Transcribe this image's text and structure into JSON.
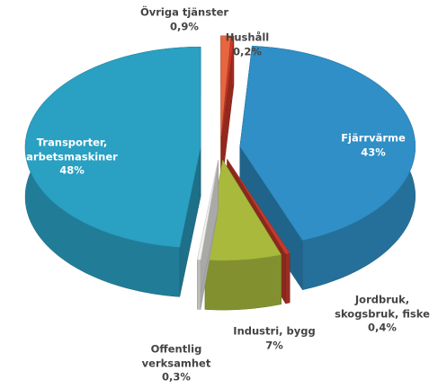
{
  "chart_data": {
    "type": "pie",
    "categories": [
      "Övriga tjänster",
      "Hushåll",
      "Fjärrvärme",
      "Jordbruk, skogsbruk, fiske",
      "Industri, bygg",
      "Offentlig verksamhet",
      "Transporter, arbetsmaskiner"
    ],
    "values": [
      0.9,
      0.2,
      43,
      0.4,
      7,
      0.3,
      48
    ],
    "value_labels": [
      "0,9%",
      "0,2%",
      "43%",
      "0,4%",
      "7%",
      "0,3%",
      "48%"
    ],
    "colors": [
      "#e8653f",
      "#d23a2a",
      "#2f8fc6",
      "#c43a2b",
      "#a8b93c",
      "#f2f2ee",
      "#2aa0c2"
    ]
  }
}
